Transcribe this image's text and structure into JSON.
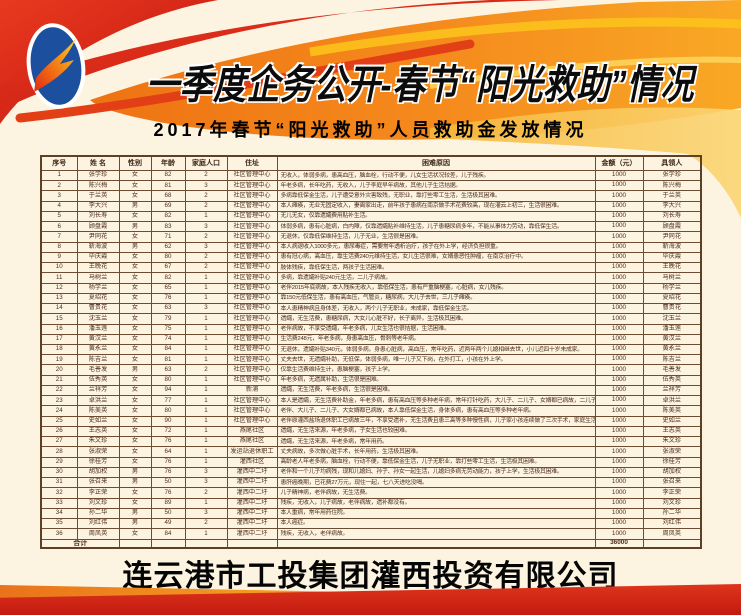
{
  "page": {
    "title": "一季度企务公开-春节“阳光救助”情况",
    "subtitle": "2017年春节“阳光救助”人员救助金发放情况",
    "footer_company": "连云港市工投集团灌西投资有限公司"
  },
  "colors": {
    "background": "#fcf4e1",
    "banner_orange": "#f58220",
    "banner_red": "#d6281e",
    "banner_yellow": "#fcc21c",
    "logo_blue": "#1c4f9e",
    "table_text": "#4d2e1c"
  },
  "logo": {
    "icon": "company-swoosh-logo"
  },
  "table": {
    "field_names": [
      "no",
      "name",
      "gender",
      "age",
      "household",
      "address",
      "reason",
      "amount",
      "recipient"
    ],
    "headers": [
      "序号",
      "姓 名",
      "性别",
      "年龄",
      "家庭人口",
      "住址",
      "困难原因",
      "金额（元）",
      "具领人"
    ],
    "rows": [
      [
        "1",
        "张学珍",
        "女",
        "82",
        "2",
        "社区管理中心",
        "无收入，体弱多病，患高血压，脑血栓，行动不便，儿女生活状况较差，儿子残疾。",
        "1000",
        "张学珍"
      ],
      [
        "2",
        "陈兴梅",
        "女",
        "81",
        "3",
        "社区管理中心",
        "年老多病，长年吃药，无收入，儿子李庭早年病故，其他儿子生活拮据。",
        "1000",
        "陈兴梅"
      ],
      [
        "3",
        "于兰英",
        "女",
        "68",
        "2",
        "社区管理中心",
        "多病靠低保金生活，儿子遭受意外灾害致残，无职业，靠打些零工生活，生活极其困难。",
        "1000",
        "于兰英"
      ],
      [
        "4",
        "李大兴",
        "男",
        "69",
        "2",
        "社区管理中心",
        "本人瘫痪，无业无固定收入，妻离家出走，前年孩子患病在南京做手术花费较高，现在灌云上初三，生活很困难。",
        "1000",
        "李大兴"
      ],
      [
        "5",
        "刘长寿",
        "女",
        "82",
        "1",
        "社区管理中心",
        "无儿无女，仅靠遗孀费用贴补生活。",
        "1000",
        "刘长寿"
      ],
      [
        "6",
        "顾盘霞",
        "男",
        "83",
        "3",
        "社区管理中心",
        "体弱多病，患有心脏病，白内障，仅靠遗孀贴补维持生活，儿子患糖尿病多年，不能从事体力劳动，靠低保生活。",
        "1000",
        "顾盘霞"
      ],
      [
        "7",
        "尹同花",
        "女",
        "71",
        "2",
        "社区管理中心",
        "无退休，仅靠低保维持生活，儿子无业，生活很是困难。",
        "1000",
        "尹同花"
      ],
      [
        "8",
        "靳海波",
        "男",
        "62",
        "3",
        "社区管理中心",
        "本人病退收入1000多元，患尿毒症，需要常年透析治疗，孩子在外上学，经济负担很重。",
        "1000",
        "靳海波"
      ],
      [
        "9",
        "毕庆霞",
        "女",
        "80",
        "2",
        "社区管理中心",
        "患有冠心病，高血压，靠生活费240元维持生活，女儿生活很难，女婿患恶性肿瘤，在南京治疗中。",
        "1000",
        "毕庆霞"
      ],
      [
        "10",
        "王晚花",
        "女",
        "67",
        "2",
        "社区管理中心",
        "肢体残疾，靠低保生活，两孩子生活困难。",
        "1000",
        "王晚花"
      ],
      [
        "11",
        "马树兰",
        "女",
        "82",
        "1",
        "社区管理中心",
        "多病，靠遗孀补贴240元生活，二儿子病故。",
        "1000",
        "马树兰"
      ],
      [
        "12",
        "杨学兰",
        "女",
        "65",
        "1",
        "社区管理中心",
        "老伴2015年底病故，本人残疾无收入，靠低保生活，患有严重脑梗塞，心脏病，女儿残疾。",
        "1000",
        "杨学兰"
      ],
      [
        "13",
        "夏绍花",
        "女",
        "76",
        "1",
        "社区管理中心",
        "靠150元低保生活，患有高血压，气管炎，糖尿病，大儿子去世，三儿子瘫痪。",
        "1000",
        "夏绍花"
      ],
      [
        "14",
        "曹贵花",
        "女",
        "63",
        "3",
        "社区管理中心",
        "本人患精神病且身体差，无收入，两个儿子无职业，未成家，靠低保金生活。",
        "1000",
        "曹贵花"
      ],
      [
        "15",
        "沈玉兰",
        "女",
        "79",
        "1",
        "社区管理中心",
        "遗孀，无生活费，患糖尿病，大女儿心脏不好，长子离异，生活极其困难。",
        "1000",
        "沈玉兰"
      ],
      [
        "16",
        "潘玉莲",
        "女",
        "75",
        "1",
        "社区管理中心",
        "老伴病故，不享受遗孀，年老多病，儿女生活也很拮据，生活困难。",
        "1000",
        "潘玉莲"
      ],
      [
        "17",
        "黄汉兰",
        "女",
        "74",
        "1",
        "社区管理中心",
        "生活费248元，年老多病，身患高血压，骨刺等老年病。",
        "1000",
        "黄汉兰"
      ],
      [
        "18",
        "黄永兰",
        "女",
        "84",
        "1",
        "社区管理中心",
        "无退休，遗孀补贴340元，体弱多病，身患心脏病，高血压，常年吃药，近两年两个儿媳相继去世，小儿近四十岁未成家。",
        "1000",
        "黄永兰"
      ],
      [
        "19",
        "陈吉兰",
        "女",
        "81",
        "1",
        "社区管理中心",
        "丈夫去世，无遗孀补助，无低保，体弱多病，唯一儿子又下岗，在外打工，小孩在外上学。",
        "1000",
        "陈吉兰"
      ],
      [
        "20",
        "毛善发",
        "男",
        "63",
        "2",
        "社区管理中心",
        "仅靠生活费维持生计，患脑梗塞，孩子上学。",
        "1000",
        "毛善发"
      ],
      [
        "21",
        "伍秀英",
        "女",
        "80",
        "1",
        "社区管理中心",
        "年老多病，无遗属补助，生活很是困难。",
        "1000",
        "伍秀英"
      ],
      [
        "22",
        "兰祥芳",
        "女",
        "94",
        "1",
        "新浦",
        "遗孀，无生活费，年老多病，生活很是困难。",
        "1000",
        "兰祥芳"
      ],
      [
        "23",
        "卓洪兰",
        "女",
        "77",
        "1",
        "社区管理中心",
        "本人是遗孀，无生活费补助金，年老多病，患有高血压等多种老年病，常年打针吃药，大儿子、二儿子、女婿都已病故，二儿子家生活也极其困难。",
        "1000",
        "卓洪兰"
      ],
      [
        "24",
        "陈美英",
        "女",
        "80",
        "1",
        "社区管理中心",
        "老伴、大儿子、二儿子、大女婿都已病故，本人靠低保金生活，身体多病，患有高血压等多种老年病。",
        "1000",
        "陈美英"
      ],
      [
        "25",
        "史如兰",
        "女",
        "90",
        "1",
        "社区管理中心",
        "老伴原灌西盐场退休职工已病故三年，不享受遗补，无生活费且患三高等多种慢性病，儿子家小孩连续做了三次手术，家庭生活很是困难。",
        "1000",
        "史如兰"
      ],
      [
        "26",
        "王志英",
        "女",
        "72",
        "1",
        "燕尾社区",
        "遗孀，无生活来源，年老多病，子女生活也较困难。",
        "1000",
        "王志英"
      ],
      [
        "27",
        "朱文珍",
        "女",
        "76",
        "1",
        "燕尾社区",
        "遗孀，无生活来源，年老多病，常年用药。",
        "1000",
        "朱文珍"
      ],
      [
        "28",
        "张淑荣",
        "女",
        "64",
        "1",
        "发运站退休职工",
        "丈夫病故，多次做心脏手术，长年用药，生活极其困难。",
        "1000",
        "张淑荣"
      ],
      [
        "29",
        "徐桂芳",
        "女",
        "76",
        "1",
        "灌西社区",
        "高龄老人年老多病，脑血栓，行动不便，靠低保金生活，儿子无职业，靠打些零工生活，生活极其困难。",
        "1000",
        "徐桂芳"
      ],
      [
        "30",
        "胡加权",
        "男",
        "76",
        "3",
        "灌西中二圩",
        "老伴和一个儿子均病残，现和儿媳妇、孙子、孙女一起生活，儿媳妇多病无劳动能力，孩子上学，生活极其困难。",
        "1000",
        "胡加权"
      ],
      [
        "31",
        "张召来",
        "男",
        "50",
        "3",
        "灌西中二圩",
        "患肝癌晚期，已花费27万元，现住一起，七八天进吃没喝。",
        "1000",
        "张召来"
      ],
      [
        "32",
        "李正荣",
        "女",
        "76",
        "2",
        "灌西中二圩",
        "儿子精神病，老伴病故，无生活费。",
        "1000",
        "李正荣"
      ],
      [
        "33",
        "刘文珍",
        "女",
        "89",
        "1",
        "灌西中二圩",
        "残疾，无收入，儿子病故，老伴病故，遗补都没有。",
        "1000",
        "刘文珍"
      ],
      [
        "34",
        "孙二华",
        "男",
        "50",
        "3",
        "灌西中二圩",
        "本人重病，常年用药住院。",
        "1000",
        "孙二华"
      ],
      [
        "35",
        "刘红伟",
        "男",
        "49",
        "2",
        "灌西中二圩",
        "本人癌症。",
        "1000",
        "刘红伟"
      ],
      [
        "36",
        "周凤英",
        "女",
        "84",
        "1",
        "灌西中二圩",
        "残疾，无收入，老伴病故。",
        "1000",
        "周凤英"
      ]
    ],
    "total_label": "合计",
    "total_amount": "36000"
  }
}
